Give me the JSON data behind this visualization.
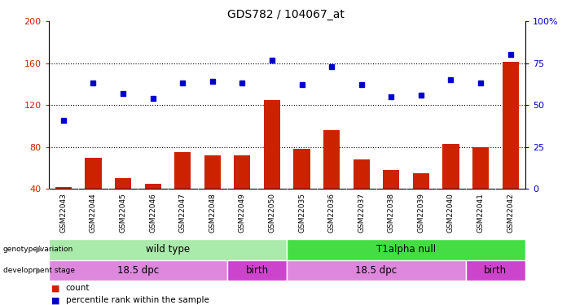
{
  "title": "GDS782 / 104067_at",
  "samples": [
    "GSM22043",
    "GSM22044",
    "GSM22045",
    "GSM22046",
    "GSM22047",
    "GSM22048",
    "GSM22049",
    "GSM22050",
    "GSM22035",
    "GSM22036",
    "GSM22037",
    "GSM22038",
    "GSM22039",
    "GSM22040",
    "GSM22041",
    "GSM22042"
  ],
  "count_values": [
    42,
    70,
    50,
    45,
    75,
    72,
    72,
    125,
    78,
    96,
    68,
    58,
    55,
    83,
    80,
    161
  ],
  "percentile_values": [
    41,
    63,
    57,
    54,
    63,
    64,
    63,
    77,
    62,
    73,
    62,
    55,
    56,
    65,
    63,
    80
  ],
  "ylim_left": [
    40,
    200
  ],
  "ylim_right": [
    0,
    100
  ],
  "yticks_left": [
    40,
    80,
    120,
    160,
    200
  ],
  "yticks_right": [
    0,
    25,
    50,
    75,
    100
  ],
  "bar_color": "#cc2200",
  "dot_color": "#0000cc",
  "plot_bg": "#ffffff",
  "xlabel_bg": "#cccccc",
  "genotype_groups": [
    {
      "label": "wild type",
      "start": 0,
      "end": 8,
      "color": "#aaeaaa"
    },
    {
      "label": "T1alpha null",
      "start": 8,
      "end": 16,
      "color": "#44dd44"
    }
  ],
  "stage_groups": [
    {
      "label": "18.5 dpc",
      "start": 0,
      "end": 6,
      "color": "#dd88dd"
    },
    {
      "label": "birth",
      "start": 6,
      "end": 8,
      "color": "#cc44cc"
    },
    {
      "label": "18.5 dpc",
      "start": 8,
      "end": 14,
      "color": "#dd88dd"
    },
    {
      "label": "birth",
      "start": 14,
      "end": 16,
      "color": "#cc44cc"
    }
  ]
}
